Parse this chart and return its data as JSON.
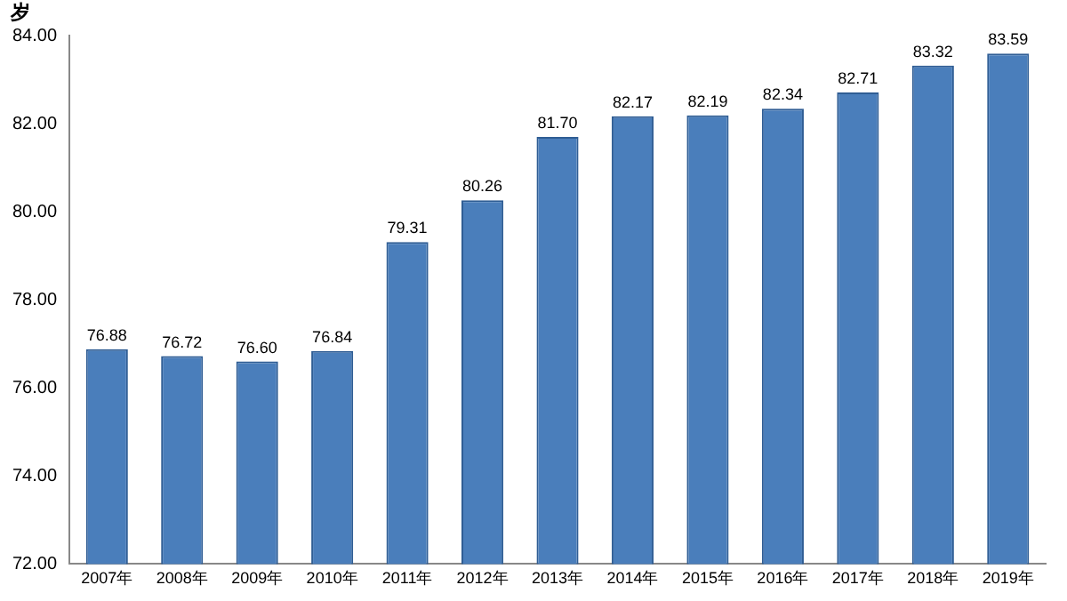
{
  "chart_data": {
    "type": "bar",
    "ylabel": "岁",
    "categories": [
      "2007年",
      "2008年",
      "2009年",
      "2010年",
      "2011年",
      "2012年",
      "2013年",
      "2014年",
      "2015年",
      "2016年",
      "2017年",
      "2018年",
      "2019年"
    ],
    "values": [
      76.88,
      76.72,
      76.6,
      76.84,
      79.31,
      80.26,
      81.7,
      82.17,
      82.19,
      82.34,
      82.71,
      83.32,
      83.59
    ],
    "value_labels": [
      "76.88",
      "76.72",
      "76.60",
      "76.84",
      "79.31",
      "80.26",
      "81.70",
      "82.17",
      "82.19",
      "82.34",
      "82.71",
      "83.32",
      "83.59"
    ],
    "color": "#4a7ebb",
    "ylim": [
      72,
      84
    ],
    "yticks": [
      {
        "value": 72,
        "label": "72.00"
      },
      {
        "value": 74,
        "label": "74.00"
      },
      {
        "value": 76,
        "label": "76.00"
      },
      {
        "value": 78,
        "label": "78.00"
      },
      {
        "value": 80,
        "label": "80.00"
      },
      {
        "value": 82,
        "label": "82.00"
      },
      {
        "value": 84,
        "label": "84.00"
      }
    ],
    "grid": false,
    "legend": false
  }
}
